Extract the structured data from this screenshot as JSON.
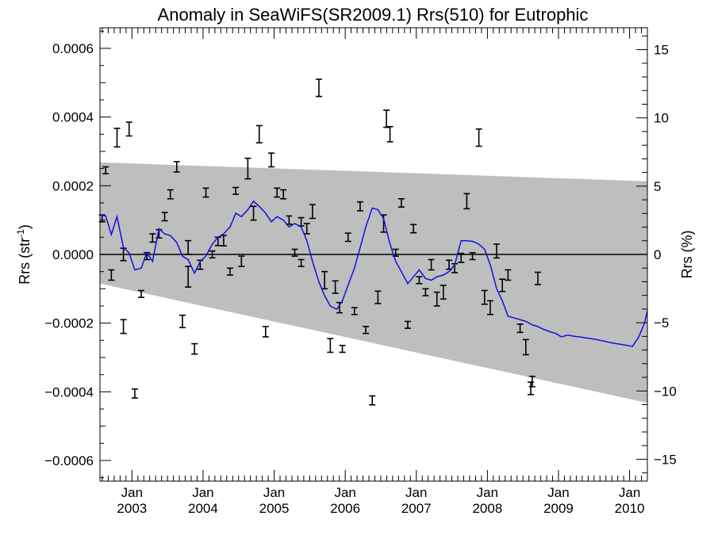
{
  "chart_data": {
    "type": "line",
    "title": "Anomaly in SeaWiFS(SR2009.1) Rrs(510) for Eutrophic",
    "ylabel_left": {
      "main": "Rrs (str",
      "sup": "-1",
      "close": ")"
    },
    "ylabel_right": "Rrs (%)",
    "xlim": [
      2002.55,
      2010.25
    ],
    "ylim_left": [
      -0.00066,
      0.00066
    ],
    "ylim_right": [
      -16.6,
      16.6
    ],
    "x_ticks": [
      {
        "x": 2003.0,
        "month": "Jan",
        "year": "2003"
      },
      {
        "x": 2004.0,
        "month": "Jan",
        "year": "2004"
      },
      {
        "x": 2005.0,
        "month": "Jan",
        "year": "2005"
      },
      {
        "x": 2006.0,
        "month": "Jan",
        "year": "2006"
      },
      {
        "x": 2007.0,
        "month": "Jan",
        "year": "2007"
      },
      {
        "x": 2008.0,
        "month": "Jan",
        "year": "2008"
      },
      {
        "x": 2009.0,
        "month": "Jan",
        "year": "2009"
      },
      {
        "x": 2010.0,
        "month": "Jan",
        "year": "2010"
      }
    ],
    "y_ticks_left": [
      {
        "v": 0.0006,
        "label": "0.0006"
      },
      {
        "v": 0.0004,
        "label": "0.0004"
      },
      {
        "v": 0.0002,
        "label": "0.0002"
      },
      {
        "v": 0.0,
        "label": "0.0000"
      },
      {
        "v": -0.0002,
        "label": "−0.0002"
      },
      {
        "v": -0.0004,
        "label": "−0.0004"
      },
      {
        "v": -0.0006,
        "label": "−0.0006"
      }
    ],
    "y_ticks_right": [
      {
        "v": 15,
        "label": "15"
      },
      {
        "v": 10,
        "label": "10"
      },
      {
        "v": 5,
        "label": "5"
      },
      {
        "v": 0,
        "label": "0"
      },
      {
        "v": -5,
        "label": "−5"
      },
      {
        "v": -10,
        "label": "−10"
      },
      {
        "v": -15,
        "label": "−15"
      }
    ],
    "band": {
      "x": [
        2002.55,
        2010.25
      ],
      "upper": [
        0.000268,
        0.000213
      ],
      "lower": [
        -8.5e-05,
        -0.000432
      ]
    },
    "zero_line": 0.0,
    "colors": {
      "band": "#bebebe",
      "line": "#1010e0",
      "error_bar": "#000000",
      "zero_line": "#000000"
    },
    "error_bars": [
      {
        "x": 2002.58,
        "y": 0.000105,
        "err": 1e-05
      },
      {
        "x": 2002.63,
        "y": 0.000245,
        "err": 1e-05
      },
      {
        "x": 2002.71,
        "y": -6e-05,
        "err": 1.5e-05
      },
      {
        "x": 2002.79,
        "y": 0.00034,
        "err": 2.7e-05
      },
      {
        "x": 2002.88,
        "y": -0.00021,
        "err": 2e-05
      },
      {
        "x": 2002.88,
        "y": 0.0,
        "err": 1.8e-05
      },
      {
        "x": 2002.96,
        "y": 0.000365,
        "err": 2e-05
      },
      {
        "x": 2003.04,
        "y": -0.000405,
        "err": 1.3e-05
      },
      {
        "x": 2003.13,
        "y": -0.000115,
        "err": 1e-05
      },
      {
        "x": 2003.21,
        "y": -5e-06,
        "err": 1e-05
      },
      {
        "x": 2003.29,
        "y": 4.8e-05,
        "err": 1.2e-05
      },
      {
        "x": 2003.38,
        "y": 6e-05,
        "err": 1.2e-05
      },
      {
        "x": 2003.46,
        "y": 0.00011,
        "err": 1.2e-05
      },
      {
        "x": 2003.54,
        "y": 0.000175,
        "err": 1.3e-05
      },
      {
        "x": 2003.63,
        "y": 0.000255,
        "err": 1.5e-05
      },
      {
        "x": 2003.71,
        "y": -0.000195,
        "err": 1.8e-05
      },
      {
        "x": 2003.79,
        "y": -6.5e-05,
        "err": 3e-05
      },
      {
        "x": 2003.79,
        "y": 2e-05,
        "err": 2e-05
      },
      {
        "x": 2003.88,
        "y": -0.000275,
        "err": 1.5e-05
      },
      {
        "x": 2003.96,
        "y": -3e-05,
        "err": 1.3e-05
      },
      {
        "x": 2004.04,
        "y": 0.00018,
        "err": 1.3e-05
      },
      {
        "x": 2004.13,
        "y": 0.0,
        "err": 1e-05
      },
      {
        "x": 2004.21,
        "y": 3.8e-05,
        "err": 1.2e-05
      },
      {
        "x": 2004.29,
        "y": 4e-05,
        "err": 1.5e-05
      },
      {
        "x": 2004.38,
        "y": -5e-05,
        "err": 1e-05
      },
      {
        "x": 2004.46,
        "y": 0.000185,
        "err": 1e-05
      },
      {
        "x": 2004.54,
        "y": -2e-05,
        "err": 1.5e-05
      },
      {
        "x": 2004.63,
        "y": 0.00025,
        "err": 3e-05
      },
      {
        "x": 2004.71,
        "y": 0.00012,
        "err": 2e-05
      },
      {
        "x": 2004.79,
        "y": 0.00035,
        "err": 2.5e-05
      },
      {
        "x": 2004.88,
        "y": -0.000225,
        "err": 1.5e-05
      },
      {
        "x": 2004.96,
        "y": 0.000275,
        "err": 2e-05
      },
      {
        "x": 2005.04,
        "y": 0.00018,
        "err": 1.3e-05
      },
      {
        "x": 2005.13,
        "y": 0.000175,
        "err": 1.3e-05
      },
      {
        "x": 2005.21,
        "y": 0.0001,
        "err": 1.2e-05
      },
      {
        "x": 2005.29,
        "y": 5e-06,
        "err": 1e-05
      },
      {
        "x": 2005.38,
        "y": 9.5e-05,
        "err": 1.2e-05
      },
      {
        "x": 2005.38,
        "y": -2.5e-05,
        "err": 1e-05
      },
      {
        "x": 2005.46,
        "y": 7.5e-05,
        "err": 1.5e-05
      },
      {
        "x": 2005.54,
        "y": 0.000125,
        "err": 2e-05
      },
      {
        "x": 2005.63,
        "y": 0.000485,
        "err": 2.5e-05
      },
      {
        "x": 2005.71,
        "y": -7.5e-05,
        "err": 2.5e-05
      },
      {
        "x": 2005.79,
        "y": -0.000265,
        "err": 2e-05
      },
      {
        "x": 2005.86,
        "y": -9.5e-05,
        "err": 1.8e-05
      },
      {
        "x": 2005.92,
        "y": -0.000155,
        "err": 1.5e-05
      },
      {
        "x": 2005.96,
        "y": -0.000275,
        "err": 1e-05
      },
      {
        "x": 2006.04,
        "y": 5e-05,
        "err": 1.2e-05
      },
      {
        "x": 2006.13,
        "y": -0.000165,
        "err": 1e-05
      },
      {
        "x": 2006.21,
        "y": 0.00014,
        "err": 1.3e-05
      },
      {
        "x": 2006.29,
        "y": -0.00022,
        "err": 1e-05
      },
      {
        "x": 2006.38,
        "y": -0.000425,
        "err": 1.3e-05
      },
      {
        "x": 2006.46,
        "y": -0.000125,
        "err": 1.8e-05
      },
      {
        "x": 2006.54,
        "y": 9e-05,
        "err": 2.5e-05
      },
      {
        "x": 2006.58,
        "y": 0.000395,
        "err": 2.5e-05
      },
      {
        "x": 2006.63,
        "y": 0.00035,
        "err": 2.2e-05
      },
      {
        "x": 2006.71,
        "y": 5e-06,
        "err": 1e-05
      },
      {
        "x": 2006.79,
        "y": 0.00015,
        "err": 1.2e-05
      },
      {
        "x": 2006.88,
        "y": -0.000205,
        "err": 1e-05
      },
      {
        "x": 2006.96,
        "y": 7.5e-05,
        "err": 1.2e-05
      },
      {
        "x": 2007.04,
        "y": -7.5e-05,
        "err": 1e-05
      },
      {
        "x": 2007.13,
        "y": -0.00011,
        "err": 1e-05
      },
      {
        "x": 2007.21,
        "y": -3e-05,
        "err": 1.5e-05
      },
      {
        "x": 2007.29,
        "y": -0.00013,
        "err": 2e-05
      },
      {
        "x": 2007.38,
        "y": -0.00011,
        "err": 2e-05
      },
      {
        "x": 2007.46,
        "y": -3e-05,
        "err": 1.3e-05
      },
      {
        "x": 2007.54,
        "y": -4e-05,
        "err": 1.3e-05
      },
      {
        "x": 2007.63,
        "y": -1e-05,
        "err": 1.3e-05
      },
      {
        "x": 2007.71,
        "y": 0.000155,
        "err": 2.2e-05
      },
      {
        "x": 2007.79,
        "y": -5e-06,
        "err": 1e-05
      },
      {
        "x": 2007.88,
        "y": 0.00034,
        "err": 2.5e-05
      },
      {
        "x": 2007.96,
        "y": -0.000125,
        "err": 2e-05
      },
      {
        "x": 2008.04,
        "y": -0.000155,
        "err": 2e-05
      },
      {
        "x": 2008.13,
        "y": 1e-05,
        "err": 2e-05
      },
      {
        "x": 2008.21,
        "y": -9e-05,
        "err": 1.8e-05
      },
      {
        "x": 2008.29,
        "y": -6e-05,
        "err": 1.5e-05
      },
      {
        "x": 2008.46,
        "y": -0.000215,
        "err": 1.2e-05
      },
      {
        "x": 2008.54,
        "y": -0.00027,
        "err": 2.2e-05
      },
      {
        "x": 2008.61,
        "y": -0.00039,
        "err": 1.8e-05
      },
      {
        "x": 2008.63,
        "y": -0.00037,
        "err": 1.5e-05
      },
      {
        "x": 2008.71,
        "y": -7e-05,
        "err": 1.8e-05
      }
    ],
    "line": {
      "x": [
        2002.55,
        2002.63,
        2002.71,
        2002.79,
        2002.88,
        2002.96,
        2003.04,
        2003.13,
        2003.21,
        2003.29,
        2003.38,
        2003.46,
        2003.54,
        2003.63,
        2003.71,
        2003.79,
        2003.88,
        2003.96,
        2004.04,
        2004.13,
        2004.21,
        2004.29,
        2004.38,
        2004.46,
        2004.54,
        2004.63,
        2004.71,
        2004.79,
        2004.88,
        2004.96,
        2005.04,
        2005.13,
        2005.21,
        2005.29,
        2005.38,
        2005.46,
        2005.54,
        2005.63,
        2005.71,
        2005.79,
        2005.88,
        2005.96,
        2006.04,
        2006.13,
        2006.21,
        2006.29,
        2006.38,
        2006.46,
        2006.54,
        2006.63,
        2006.71,
        2006.79,
        2006.88,
        2006.96,
        2007.04,
        2007.13,
        2007.21,
        2007.29,
        2007.38,
        2007.46,
        2007.54,
        2007.63,
        2007.71,
        2007.79,
        2007.88,
        2007.96,
        2008.04,
        2008.13,
        2008.21,
        2008.29,
        2008.38,
        2008.46,
        2008.54,
        2008.63,
        2008.71,
        2008.79,
        2008.88,
        2008.96,
        2009.04,
        2009.13,
        2009.21,
        2009.29,
        2009.38,
        2009.46,
        2009.54,
        2009.63,
        2009.71,
        2009.79,
        2009.88,
        2009.96,
        2010.04,
        2010.13,
        2010.21,
        2010.25
      ],
      "y": [
        0.000115,
        0.000112,
        5.8e-05,
        0.00011,
        2e-05,
        5e-06,
        -4.5e-05,
        -4e-05,
        5e-06,
        -2e-05,
        7.5e-05,
        6e-05,
        5.5e-05,
        3.5e-05,
        -5e-06,
        -1.5e-05,
        -5.5e-05,
        -2e-05,
        -5e-06,
        3e-05,
        5e-05,
        6e-05,
        8e-05,
        0.00012,
        0.00011,
        0.00013,
        0.000155,
        0.00014,
        0.00012,
        9.5e-05,
        0.00011,
        0.0001,
        8e-05,
        9e-05,
        8e-05,
        4e-05,
        -2e-05,
        -8e-05,
        -0.00012,
        -0.00015,
        -0.00016,
        -0.000135,
        -9e-05,
        -4e-05,
        2e-05,
        8e-05,
        0.000135,
        0.00013,
        0.000105,
        3e-05,
        -2e-05,
        -5e-05,
        -8.5e-05,
        -6.5e-05,
        -4.5e-05,
        -7e-05,
        -7.5e-05,
        -6.5e-05,
        -6e-05,
        -5e-05,
        -3e-05,
        4e-05,
        4e-05,
        3.8e-05,
        3e-05,
        1.5e-05,
        -3e-05,
        -0.0001,
        -0.000135,
        -0.00018,
        -0.000185,
        -0.00019,
        -0.000195,
        -0.000205,
        -0.00021,
        -0.000218,
        -0.000225,
        -0.00023,
        -0.00024,
        -0.000235,
        -0.000238,
        -0.00024,
        -0.000243,
        -0.000245,
        -0.000248,
        -0.000252,
        -0.000256,
        -0.000259,
        -0.000262,
        -0.000265,
        -0.000268,
        -0.00024,
        -0.0002,
        -0.000165
      ]
    }
  }
}
